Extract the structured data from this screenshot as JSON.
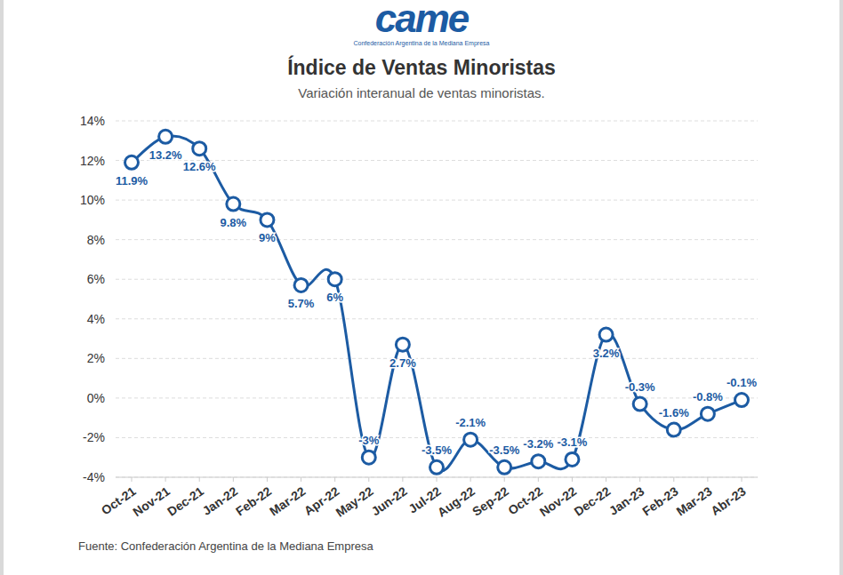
{
  "chart_data": {
    "type": "line",
    "logo_text": "came",
    "logo_caption": "Confederación Argentina de la Mediana Empresa",
    "title": "Índice de Ventas Minoristas",
    "subtitle": "Variación interanual de ventas minoristas.",
    "source": "Fuente: Confederación Argentina de la Mediana Empresa",
    "categories": [
      "Oct-21",
      "Nov-21",
      "Dec-21",
      "Jan-22",
      "Feb-22",
      "Mar-22",
      "Apr-22",
      "May-22",
      "Jun-22",
      "Jul-22",
      "Aug-22",
      "Sep-22",
      "Oct-22",
      "Nov-22",
      "Dec-22",
      "Jan-23",
      "Feb-23",
      "Mar-23",
      "Abr-23"
    ],
    "values": [
      11.9,
      13.2,
      12.6,
      9.8,
      9,
      5.7,
      6,
      -3,
      2.7,
      -3.5,
      -2.1,
      -3.5,
      -3.2,
      -3.1,
      3.2,
      -0.3,
      -1.6,
      -0.8,
      -0.1
    ],
    "value_labels": [
      "11.9%",
      "13.2%",
      "12.6%",
      "9.8%",
      "9%",
      "5.7%",
      "6%",
      "-3%",
      "2.7%",
      "-3.5%",
      "-2.1%",
      "-3.5%",
      "-3.2%",
      "-3.1%",
      "3.2%",
      "-0.3%",
      "-1.6%",
      "-0.8%",
      "-0.1%"
    ],
    "color": "#1c5ba3",
    "marker": "circle",
    "line_style": "smooth",
    "data_labels": true,
    "grid": true,
    "ylim": [
      -4,
      14
    ],
    "yticks": [
      {
        "value": -4,
        "label": "-4%"
      },
      {
        "value": -2,
        "label": "-2%"
      },
      {
        "value": 0,
        "label": "0%"
      },
      {
        "value": 2,
        "label": "2%"
      },
      {
        "value": 4,
        "label": "4%"
      },
      {
        "value": 6,
        "label": "6%"
      },
      {
        "value": 8,
        "label": "8%"
      },
      {
        "value": 10,
        "label": "10%"
      },
      {
        "value": 12,
        "label": "12%"
      },
      {
        "value": 14,
        "label": "14%"
      }
    ]
  }
}
